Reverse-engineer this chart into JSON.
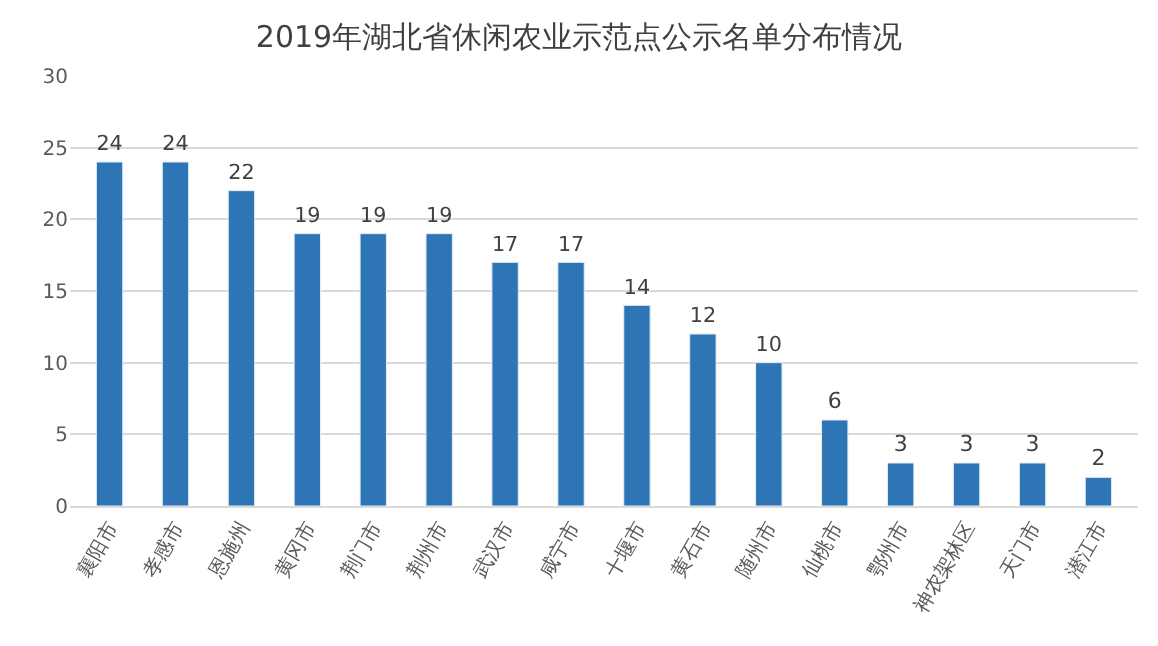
{
  "chart_data": {
    "type": "bar",
    "title": "2019年湖北省休闲农业示范点公示名单分布情况",
    "categories": [
      "襄阳市",
      "孝感市",
      "恩施州",
      "黄冈市",
      "荆门市",
      "荆州市",
      "武汉市",
      "咸宁市",
      "十堰市",
      "黄石市",
      "随州市",
      "仙桃市",
      "鄂州市",
      "神农架林区",
      "天门市",
      "潜江市"
    ],
    "values": [
      24,
      24,
      22,
      19,
      19,
      19,
      17,
      17,
      14,
      12,
      10,
      6,
      3,
      3,
      3,
      2
    ],
    "color": "#2e75b6",
    "data_labels": true,
    "ylim": [
      0,
      30
    ],
    "yticks": [
      0,
      5,
      10,
      15,
      20,
      25,
      30
    ],
    "grid": "y",
    "legend": false
  }
}
